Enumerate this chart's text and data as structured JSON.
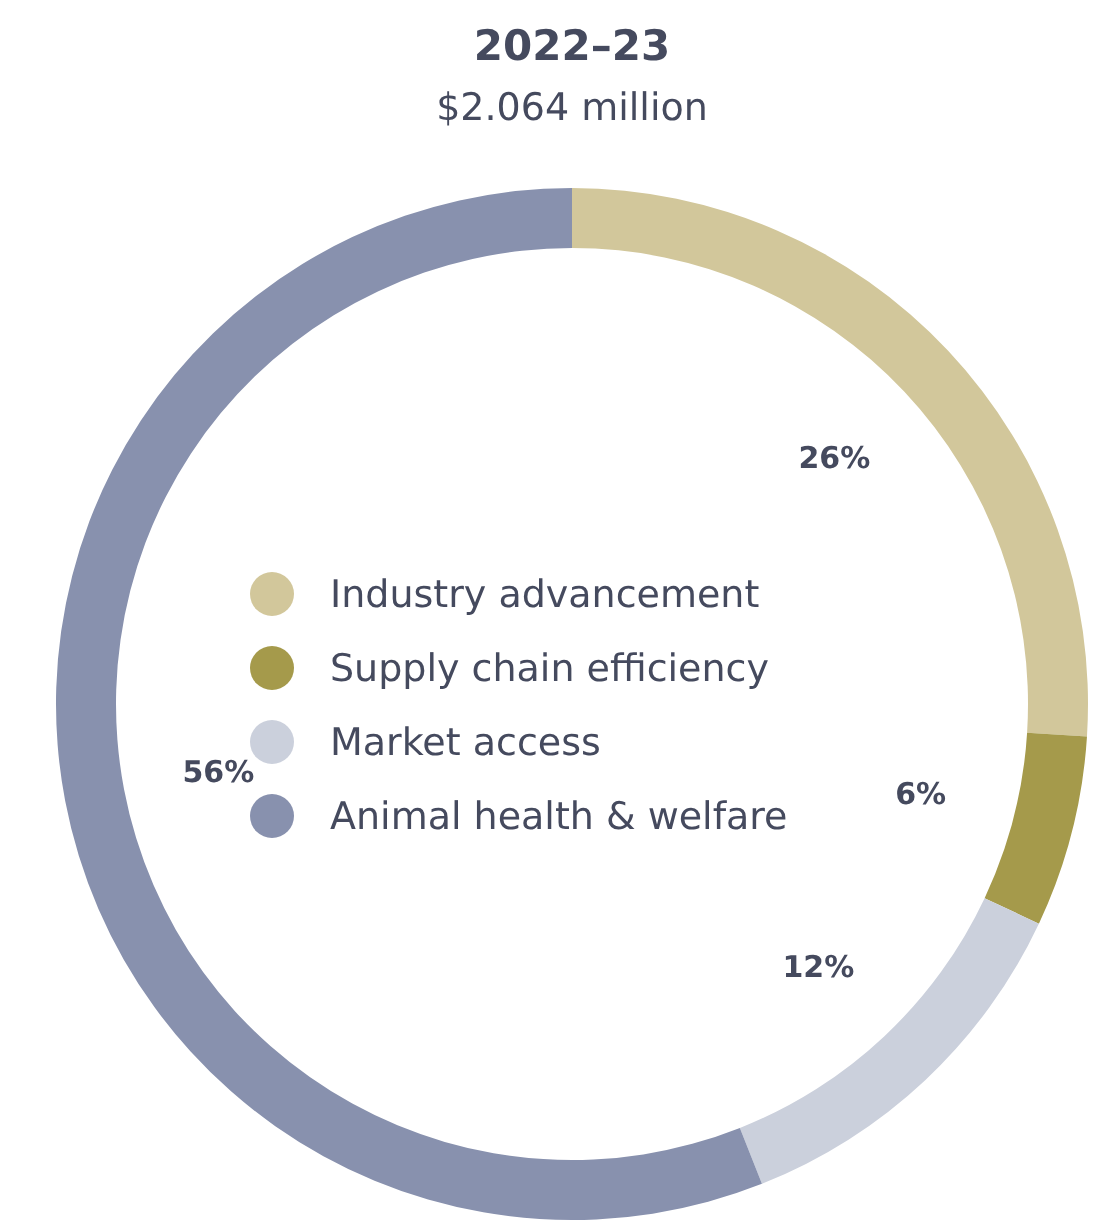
{
  "chart_data": {
    "type": "donut",
    "title": "2022–23",
    "subtitle": "$2.064 million",
    "categories": [
      "Industry advancement",
      "Supply chain efficiency",
      "Market access",
      "Animal health & welfare"
    ],
    "values": [
      26,
      6,
      12,
      56
    ],
    "colors": [
      "#d2c79b",
      "#a59a4b",
      "#cbd0dc",
      "#8891ae"
    ],
    "value_labels": [
      "26%",
      "6%",
      "12%",
      "56%"
    ],
    "legend": "center"
  }
}
